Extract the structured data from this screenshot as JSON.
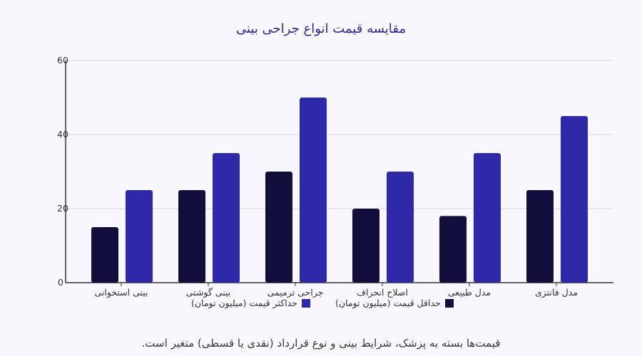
{
  "title": "مقایسه قیمت انواع جراحی بینی",
  "footer_note": "قیمت‌ها بسته به پزشک، شرایط بینی و نوع قرارداد (نقدی یا قسطی) متغیر است.",
  "colors": {
    "min": "#110e3c",
    "max": "#2d29a8",
    "grid": "#d9d8e0",
    "axis": "#333333",
    "background": "#f8f7fd"
  },
  "y_ticks": [
    "0",
    "20",
    "40",
    "60"
  ],
  "legend": {
    "min_label": "حداقل قیمت (میلیون تومان)",
    "max_label": "حداکثر قیمت (میلیون تومان)"
  },
  "chart_data": {
    "type": "bar",
    "title": "مقایسه قیمت انواع جراحی بینی",
    "xlabel": "",
    "ylabel": "",
    "ylim": [
      0,
      60
    ],
    "grid": true,
    "legend_position": "bottom",
    "categories": [
      "بینی استخوانی",
      "بینی گوشتی",
      "جراحی ترمیمی",
      "اصلاح انحراف",
      "مدل طبیعی",
      "مدل فانتزی"
    ],
    "series": [
      {
        "name": "حداقل قیمت (میلیون تومان)",
        "values": [
          15,
          25,
          30,
          20,
          18,
          25
        ]
      },
      {
        "name": "حداکثر قیمت (میلیون تومان)",
        "values": [
          25,
          35,
          50,
          30,
          35,
          45
        ]
      }
    ],
    "annotations": [
      "قیمت‌ها بسته به پزشک، شرایط بینی و نوع قرارداد (نقدی یا قسطی) متغیر است."
    ]
  }
}
